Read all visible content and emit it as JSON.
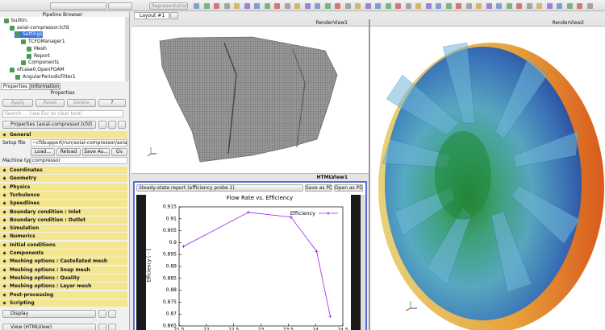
{
  "toolbar": {
    "representation": "Representation"
  },
  "pipeline": {
    "title": "Pipeline Browser",
    "items": [
      "builtin:",
      "axial-compressor.tcfd",
      "Settings",
      "TCFDManager1",
      "Mesh",
      "Report",
      "Components",
      "ofcase0.OpenFOAM",
      "AngularPeriodicFilter1"
    ]
  },
  "properties": {
    "tabs": [
      "Properties",
      "Information"
    ],
    "title": "Properties",
    "buttons": [
      "Apply",
      "Reset",
      "Delete",
      "?"
    ],
    "search": "Search ... (use Esc to clear text)",
    "source": "Properties (axial-compressor.tcfd)",
    "general": "General",
    "setup_label": "Setup file",
    "setup_value": "~cfdsupport/run/axial-compressor/axial-compress",
    "file_buttons": [
      "Load...",
      "Reload",
      "Save As...",
      "Ov"
    ],
    "machine_label": "Machine type",
    "machine_value": "compressor",
    "sections": [
      "Coordinates",
      "Geometry",
      "Physics",
      "Turbulence",
      "Speedlines",
      "Boundary condition : Inlet",
      "Boundary condition : Outlet",
      "Simulation",
      "Numerics",
      "Initial conditions",
      "Components",
      "Meshing options : Castellated mesh",
      "Meshing options : Snap mesh",
      "Meshing options : Quality",
      "Meshing options : Layer mesh",
      "Post-processing",
      "Scripting"
    ],
    "display": "Display",
    "view": "View (HTMLView)"
  },
  "layout_tab": "Layout #1",
  "render_view_1": "RenderView1",
  "render_view_2": "RenderView2",
  "html_view": {
    "title": "HTMLView1",
    "report": "Steady-state report (efficiency probe 1)",
    "buttons": [
      "Save as PDF",
      "Open as PDF"
    ]
  },
  "chart_data": {
    "type": "line",
    "title": "Flow Rate  vs. Efficiency",
    "y_label": "Efficiency [ - ]",
    "x": [
      21.58,
      22.77,
      23.55,
      24.02,
      24.27
    ],
    "series": [
      {
        "name": "Efficiency",
        "color": "#a020f0",
        "values": [
          0.8984,
          0.9127,
          0.9107,
          0.8963,
          0.869
        ]
      }
    ],
    "xlim": [
      21.5,
      24.5
    ],
    "ylim": [
      0.865,
      0.915
    ],
    "xticks": [
      21.5,
      22,
      22.5,
      23,
      23.5,
      24,
      24.5
    ],
    "yticks": [
      0.865,
      0.87,
      0.875,
      0.88,
      0.885,
      0.89,
      0.895,
      0.9,
      0.905,
      0.91,
      0.915
    ],
    "legend": "upper right"
  }
}
